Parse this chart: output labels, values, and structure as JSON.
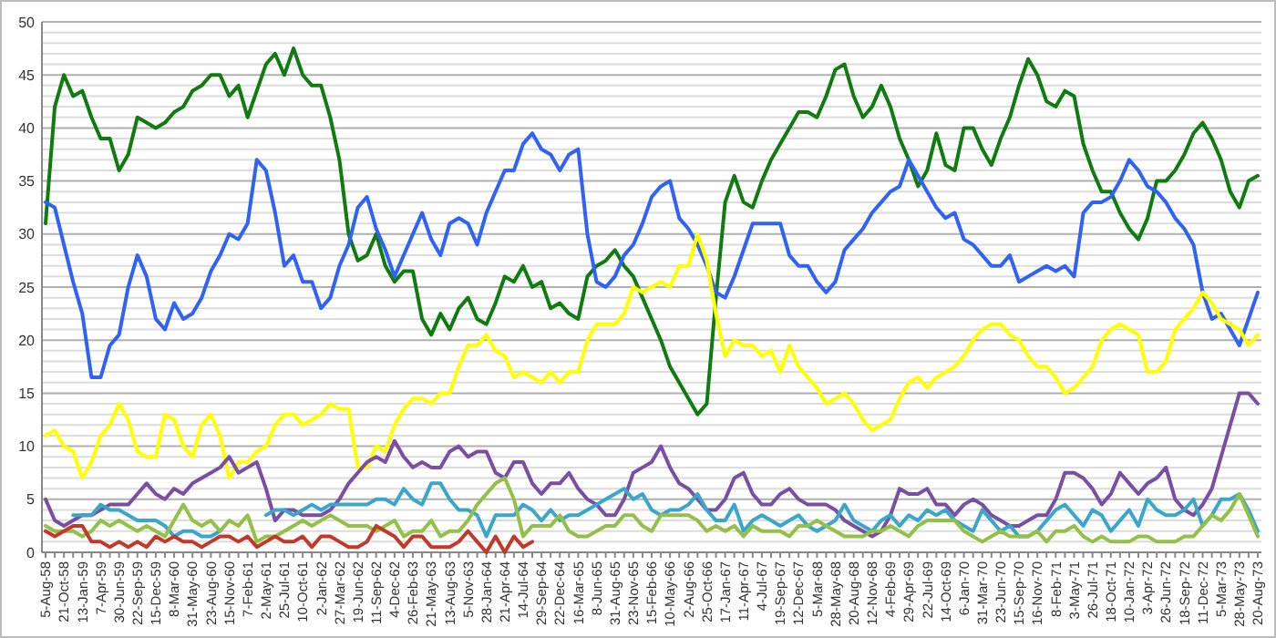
{
  "chart_data": {
    "type": "line",
    "categories": [
      "5-Aug-58",
      null,
      "21-Oct-58",
      null,
      "13-Jan-59",
      null,
      "7-Apr-59",
      null,
      "30-Jun-59",
      null,
      "22-Sep-59",
      null,
      "15-Dec-59",
      null,
      "8-Mar-60",
      null,
      "31-May-60",
      null,
      "23-Aug-60",
      null,
      "15-Nov-60",
      null,
      "7-Feb-61",
      null,
      "2-May-61",
      null,
      "25-Jul-61",
      null,
      "10-Oct-61",
      null,
      "2-Jan-62",
      null,
      "27-Mar-62",
      null,
      "19-Jun-62",
      null,
      "11-Sep-62",
      null,
      "4-Dec-62",
      null,
      "26-Feb-63",
      null,
      "21-May-63",
      null,
      "13-Aug-63",
      null,
      "5-Nov-63",
      null,
      "28-Jan-64",
      null,
      "21-Apr-64",
      null,
      "14-Jul-64",
      null,
      "29-Sep-64",
      null,
      "22-Dec-64",
      null,
      "16-Mar-65",
      null,
      "8-Jun-65",
      null,
      "31-Aug-65",
      null,
      "23-Nov-65",
      null,
      "15-Feb-66",
      null,
      "10-May-66",
      null,
      "2-Aug-66",
      null,
      "25-Oct-66",
      null,
      "17-Jan-67",
      null,
      "11-Apr-67",
      null,
      "4-Jul-67",
      null,
      "19-Sep-67",
      null,
      "12-Dec-67",
      null,
      "5-Mar-68",
      null,
      "28-May-68",
      null,
      "20-Aug-68",
      null,
      "12-Nov-68",
      null,
      "4-Feb-69",
      null,
      "29-Apr-69",
      null,
      "22-Jul-69",
      null,
      "14-Oct-69",
      null,
      "6-Jan-70",
      null,
      "31-Mar-70",
      null,
      "23-Jun-70",
      null,
      "15-Sep-70",
      null,
      "16-Nov-70",
      null,
      "8-Feb-71",
      null,
      "3-May-71",
      null,
      "26-Jul-71",
      null,
      "18-Oct-71",
      null,
      "10-Jan-72",
      null,
      "3-Apr-72",
      null,
      "26-Jun-72",
      null,
      "18-Sep-72",
      null,
      "11-Dec-72",
      null,
      "5-Mar-73",
      null,
      "28-May-73",
      null,
      "20-Aug-73"
    ],
    "series": [
      {
        "color": "#107c10",
        "values": [
          31,
          42,
          45,
          43,
          43.5,
          41,
          39,
          39,
          36,
          37.5,
          41,
          40.5,
          40,
          40.5,
          41.5,
          42,
          43.5,
          44,
          45,
          45,
          43,
          44,
          41,
          43.5,
          46,
          47,
          45,
          47.5,
          45,
          44,
          44,
          41,
          37,
          30,
          27.5,
          28,
          30,
          27,
          25.5,
          26.5,
          26.5,
          22,
          20.5,
          22.5,
          21,
          23,
          24,
          22,
          21.5,
          23.5,
          26,
          25.5,
          27,
          25,
          25.5,
          23,
          23.5,
          22.5,
          22,
          26,
          27,
          27.5,
          28.5,
          27,
          26,
          24,
          22,
          20,
          17.5,
          16,
          14.5,
          13,
          14,
          24,
          33,
          35.5,
          33,
          32.5,
          35,
          37,
          38.5,
          40,
          41.5,
          41.5,
          41,
          43,
          45.5,
          46,
          43,
          41,
          42,
          44,
          42,
          39,
          37,
          34.5,
          36,
          39.5,
          36.5,
          36,
          40,
          40,
          38,
          36.5,
          39,
          41,
          44,
          46.5,
          45,
          42.5,
          42,
          43.5,
          43,
          38.5,
          36,
          34,
          34,
          32,
          30.5,
          29.5,
          31.5,
          35,
          35,
          36,
          37.5,
          39.5,
          40.5,
          39,
          37,
          34,
          32.5,
          35,
          35.5
        ]
      },
      {
        "color": "#2f62f5",
        "values": [
          33,
          32.5,
          29,
          25.5,
          22.5,
          16.5,
          16.5,
          19.5,
          20.5,
          25,
          28,
          26,
          22,
          21,
          23.5,
          22,
          22.5,
          24,
          26.5,
          28,
          30,
          29.5,
          31,
          37,
          36,
          32,
          27,
          28,
          25.5,
          25.5,
          23,
          24,
          27,
          29,
          32.5,
          33.5,
          30.5,
          28.5,
          26,
          28,
          30,
          32,
          29.5,
          28,
          31,
          31.5,
          31,
          29,
          32,
          34,
          36,
          36,
          38.5,
          39.5,
          38,
          37.5,
          36,
          37.5,
          38,
          30,
          25.5,
          25,
          26,
          28,
          29,
          31,
          33.5,
          34.5,
          35,
          31.5,
          30.5,
          29,
          27,
          24.5,
          24,
          26,
          28.5,
          31,
          31,
          31,
          31,
          28,
          27,
          27,
          25.5,
          24.5,
          25.5,
          28.5,
          29.5,
          30.5,
          32,
          33,
          34,
          34.5,
          37,
          35.5,
          34,
          32.5,
          31.5,
          32,
          29.5,
          29,
          28,
          27,
          27,
          28,
          25.5,
          26,
          26.5,
          27,
          26.5,
          27,
          26,
          32,
          33,
          33,
          33.5,
          35,
          37,
          36,
          34.5,
          34,
          33,
          31.5,
          30.5,
          29,
          24.5,
          22,
          22.5,
          21,
          19.5,
          22,
          24.5
        ]
      },
      {
        "color": "#ffff00",
        "values": [
          11,
          11.5,
          10,
          9.5,
          7,
          8.5,
          11,
          12,
          14,
          12.5,
          9.5,
          9,
          9,
          13,
          12.5,
          10,
          9,
          12,
          13,
          11,
          7,
          8.5,
          8.5,
          9.5,
          10,
          12,
          13,
          13,
          12,
          12.5,
          13,
          14,
          13.5,
          13.5,
          8,
          8,
          10,
          9.5,
          12,
          13.5,
          14.5,
          14.5,
          14,
          15,
          15,
          17.5,
          19.5,
          19.5,
          20.5,
          19,
          18.5,
          16.5,
          17,
          16.5,
          16,
          17,
          16,
          17,
          17,
          20,
          21.5,
          21.5,
          21.5,
          22.5,
          25,
          24.5,
          25,
          25.5,
          25,
          27,
          27,
          30,
          27.5,
          22.5,
          18.5,
          20,
          19.5,
          19.5,
          18.5,
          19,
          17,
          19.5,
          17.5,
          16.5,
          15.5,
          14,
          14.5,
          15,
          14,
          12.5,
          11.5,
          12,
          12.5,
          14.5,
          16,
          16.5,
          15.5,
          16.5,
          17,
          17.5,
          18.5,
          20,
          21,
          21.5,
          21.5,
          20.5,
          20,
          18.5,
          17.5,
          17.5,
          16.5,
          15,
          15.5,
          16.5,
          17.5,
          20,
          21,
          21.5,
          21,
          20.5,
          17,
          17,
          18,
          21,
          22,
          23,
          24.5,
          23.5,
          22,
          21.5,
          21,
          19.5,
          20.5
        ]
      },
      {
        "color": "#7a4fa3",
        "values": [
          5,
          3,
          2.5,
          3,
          3.5,
          3.5,
          4,
          4.5,
          4.5,
          4.5,
          5.5,
          6.5,
          5.5,
          5,
          6,
          5.5,
          6.5,
          7,
          7.5,
          8,
          9,
          7.5,
          8,
          8.5,
          6,
          3,
          4,
          4,
          3.5,
          3.5,
          3.5,
          4,
          5,
          6.5,
          7.5,
          8.5,
          9,
          8.5,
          10.5,
          9,
          8,
          8.5,
          8,
          8,
          9.5,
          10,
          9,
          9.5,
          9.5,
          7.5,
          7,
          8.5,
          8.5,
          6.5,
          5.5,
          6.5,
          6.5,
          7.5,
          6,
          5,
          4.5,
          3.5,
          3.5,
          5,
          7.5,
          8,
          8.5,
          10,
          8,
          6.5,
          6,
          5,
          4,
          4,
          5,
          7,
          7.5,
          5.5,
          4.5,
          4.5,
          5.5,
          6,
          5,
          4.5,
          4.5,
          4.5,
          4,
          3,
          2.5,
          2,
          1.5,
          2,
          3.5,
          6,
          5.5,
          5.5,
          6,
          4.5,
          4.5,
          3.5,
          4.5,
          5,
          4.5,
          3.5,
          3,
          2.5,
          2.5,
          3,
          3.5,
          3.5,
          5,
          7.5,
          7.5,
          7,
          6,
          4.5,
          5.5,
          7.5,
          6.5,
          5.5,
          6.5,
          7,
          8,
          5,
          4,
          3.5,
          4.5,
          6,
          9,
          12,
          15,
          15,
          14
        ]
      },
      {
        "color": "#3aa6c9",
        "values": [
          null,
          null,
          null,
          3.5,
          3.5,
          3.5,
          4.5,
          4,
          4,
          3.5,
          3,
          3,
          3,
          2.5,
          1.5,
          2,
          2,
          1.5,
          1.5,
          2,
          null,
          null,
          null,
          null,
          3.5,
          4,
          4,
          3.5,
          4,
          4.5,
          4,
          4.5,
          4.5,
          4.5,
          4.5,
          4.5,
          5,
          5,
          4.5,
          6,
          5,
          4.5,
          6.5,
          6.5,
          5,
          4,
          4,
          3.5,
          1.5,
          3.5,
          3.5,
          3.5,
          4.5,
          4,
          3,
          4,
          3,
          3.5,
          3.5,
          4,
          4.5,
          5,
          5.5,
          6,
          5,
          5.5,
          4,
          3.5,
          4,
          4,
          4.5,
          5.5,
          4,
          3,
          3,
          4.5,
          2,
          3,
          3.5,
          3,
          2.5,
          3,
          3.5,
          2.5,
          2,
          2.5,
          3,
          4.5,
          3,
          2.5,
          2,
          3,
          3.5,
          2.5,
          3.5,
          3,
          4,
          3.5,
          4,
          3,
          2.5,
          2,
          4,
          3,
          2,
          2.5,
          1.5,
          1.5,
          2,
          3,
          4,
          4.5,
          3.5,
          2.5,
          4,
          3.5,
          2,
          3,
          4,
          2.5,
          5,
          4,
          3.5,
          3.5,
          4,
          5,
          2.5,
          3.5,
          5,
          5,
          5.5,
          4,
          2
        ]
      },
      {
        "color": "#93c047",
        "values": [
          2.5,
          2,
          2,
          2,
          1.5,
          2,
          3,
          2.5,
          3,
          2.5,
          2,
          2.5,
          2,
          1.5,
          3,
          4.5,
          3,
          2.5,
          3,
          2,
          3,
          2.5,
          3.5,
          1,
          1.5,
          1.5,
          2,
          2.5,
          3,
          2.5,
          3,
          3.5,
          3,
          2.5,
          2.5,
          2.5,
          2,
          2.5,
          3,
          1.5,
          2,
          2,
          3,
          1.5,
          2,
          2,
          3,
          4.5,
          5.5,
          6.5,
          7,
          5,
          1.5,
          2.5,
          2.5,
          2.5,
          3.5,
          2,
          1.5,
          1.5,
          2,
          2.5,
          2.5,
          3.5,
          3.5,
          2.5,
          2,
          3.5,
          3.5,
          3.5,
          3.5,
          3,
          2,
          2.5,
          2,
          2.5,
          1.5,
          2.5,
          2,
          2,
          2,
          1.5,
          2.5,
          2.5,
          3,
          2.5,
          2,
          1.5,
          1.5,
          1.5,
          2,
          2,
          2.5,
          2,
          1.5,
          2.5,
          3,
          3,
          3,
          3,
          2,
          1.5,
          1,
          1.5,
          2,
          1.5,
          1.5,
          1.5,
          2,
          1,
          2,
          2,
          2.5,
          1.5,
          1,
          1.5,
          1,
          1,
          1,
          1.5,
          1.5,
          1,
          1,
          1,
          1.5,
          1.5,
          2.5,
          3.5,
          3,
          4,
          5.5,
          3.5,
          1.5
        ]
      },
      {
        "color": "#c0392b",
        "values": [
          2,
          1.5,
          2,
          2.5,
          2.5,
          1,
          1,
          0.5,
          1,
          0.5,
          1,
          0.5,
          1.5,
          1,
          1.5,
          1,
          1,
          0.5,
          1,
          1.5,
          1.5,
          1,
          1.5,
          0.5,
          1,
          1.5,
          1,
          1,
          1.5,
          0.5,
          1.5,
          1.5,
          1,
          0.5,
          0.5,
          1,
          2.5,
          2,
          1.5,
          0.5,
          1.5,
          1.5,
          0.5,
          0.5,
          0.5,
          1,
          2,
          1,
          0,
          1.5,
          0,
          1.5,
          0.5,
          1,
          null,
          null,
          null,
          null,
          null,
          null,
          null,
          null,
          null,
          null,
          null,
          null,
          null,
          null,
          null,
          null,
          null,
          null,
          null,
          null,
          null,
          null,
          null,
          null,
          null,
          null,
          null,
          null,
          null,
          null,
          null,
          null,
          null,
          null,
          null,
          null,
          null,
          null,
          null,
          null,
          null,
          null,
          null,
          null,
          null,
          null,
          null,
          null,
          null,
          null,
          null,
          null,
          null,
          null,
          null,
          null,
          null,
          null,
          null,
          null,
          null,
          null,
          null,
          null,
          null,
          null,
          null,
          null,
          null,
          null,
          null,
          null,
          null,
          null,
          null,
          null,
          null,
          null,
          null
        ]
      }
    ],
    "ylim": [
      0,
      50
    ],
    "yticks": [
      0,
      {
        "value": 1,
        "label": null
      },
      {
        "value": 2,
        "label": null
      },
      {
        "value": 3,
        "label": null
      },
      {
        "value": 4,
        "label": null
      },
      5,
      {
        "value": 6,
        "label": null
      },
      {
        "value": 7,
        "label": null
      },
      {
        "value": 8,
        "label": null
      },
      {
        "value": 9,
        "label": null
      },
      10,
      {
        "value": 11,
        "label": null
      },
      {
        "value": 12,
        "label": null
      },
      {
        "value": 13,
        "label": null
      },
      {
        "value": 14,
        "label": null
      },
      15,
      {
        "value": 16,
        "label": null
      },
      {
        "value": 17,
        "label": null
      },
      {
        "value": 18,
        "label": null
      },
      {
        "value": 19,
        "label": null
      },
      20,
      {
        "value": 21,
        "label": null
      },
      {
        "value": 22,
        "label": null
      },
      {
        "value": 23,
        "label": null
      },
      {
        "value": 24,
        "label": null
      },
      25,
      {
        "value": 26,
        "label": null
      },
      {
        "value": 27,
        "label": null
      },
      {
        "value": 28,
        "label": null
      },
      {
        "value": 29,
        "label": null
      },
      30,
      {
        "value": 31,
        "label": null
      },
      {
        "value": 32,
        "label": null
      },
      {
        "value": 33,
        "label": null
      },
      {
        "value": 34,
        "label": null
      },
      35,
      {
        "value": 36,
        "label": null
      },
      {
        "value": 37,
        "label": null
      },
      {
        "value": 38,
        "label": null
      },
      {
        "value": 39,
        "label": null
      },
      40,
      {
        "value": 41,
        "label": null
      },
      {
        "value": 42,
        "label": null
      },
      {
        "value": 43,
        "label": null
      },
      {
        "value": 44,
        "label": null
      },
      45,
      {
        "value": 46,
        "label": null
      },
      {
        "value": 47,
        "label": null
      },
      {
        "value": 48,
        "label": null
      },
      {
        "value": 49,
        "label": null
      },
      50
    ],
    "grid": "y",
    "marker": "none",
    "line_style": "solid"
  }
}
